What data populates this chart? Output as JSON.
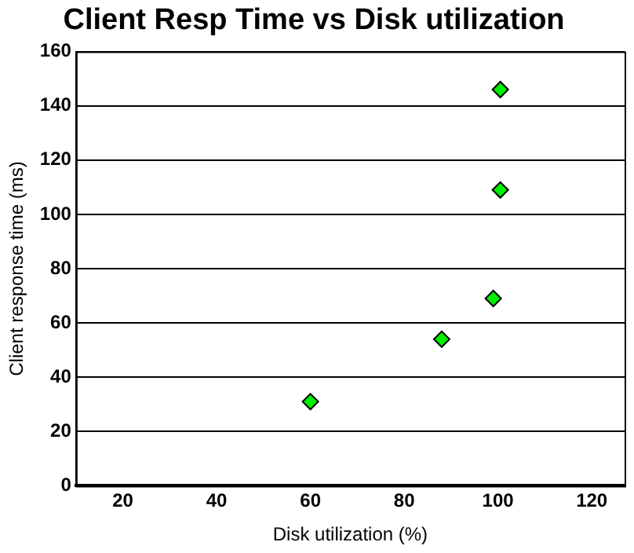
{
  "chart_data": {
    "type": "scatter",
    "title": "Client Resp Time vs Disk utilization",
    "xlabel": "Disk utilization (%)",
    "ylabel": "Client response time (ms)",
    "x": [
      60,
      88,
      99,
      100.5,
      100.5
    ],
    "values": [
      31,
      54,
      69,
      109,
      146
    ],
    "color": "#00ee00",
    "marker": "diamond",
    "grid": "y",
    "xlim": [
      10,
      127
    ],
    "xticks": [
      20,
      40,
      60,
      80,
      100,
      120
    ],
    "ylim": [
      0,
      160
    ],
    "yticks": [
      0,
      20,
      40,
      60,
      80,
      100,
      120,
      140,
      160
    ]
  }
}
